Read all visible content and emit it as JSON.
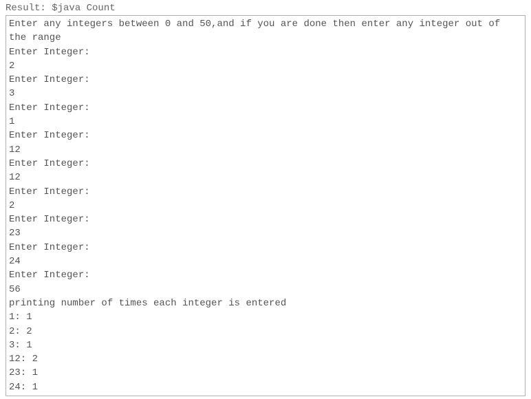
{
  "result_label": "Result: $java Count",
  "console": {
    "lines": [
      "Enter any integers between 0 and 50,and if you are done then enter any integer out of the range",
      "Enter Integer:",
      "2",
      "Enter Integer:",
      "3",
      "Enter Integer:",
      "1",
      "Enter Integer:",
      "12",
      "Enter Integer:",
      "12",
      "Enter Integer:",
      "2",
      "Enter Integer:",
      "23",
      "Enter Integer:",
      "24",
      "Enter Integer:",
      "56",
      "printing number of times each integer is entered",
      "1: 1",
      "2: 2",
      "3: 1",
      "12: 2",
      "23: 1",
      "24: 1"
    ]
  },
  "colors": {
    "text": "#545454",
    "border": "#b0b0b0",
    "background": "#ffffff"
  }
}
